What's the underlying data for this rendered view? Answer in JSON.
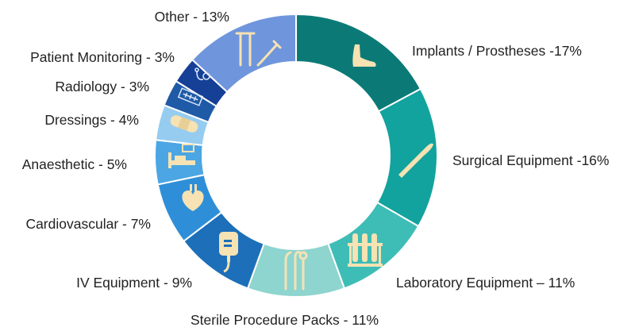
{
  "chart_data": {
    "type": "pie",
    "donut": true,
    "slices": [
      {
        "label": "Implants / Prostheses -17%",
        "value": 17,
        "color": "#0b7a77",
        "icon": "foot-icon"
      },
      {
        "label": "Surgical Equipment -16%",
        "value": 16,
        "color": "#12a39e",
        "icon": "scalpel-icon"
      },
      {
        "label": "Laboratory Equipment – 11%",
        "value": 11,
        "color": "#3dbdb6",
        "icon": "test-tubes-icon"
      },
      {
        "label": "Sterile Procedure Packs - 11%",
        "value": 11,
        "color": "#8ed4cf",
        "icon": "dental-tools-icon"
      },
      {
        "label": "IV Equipment - 9%",
        "value": 9,
        "color": "#1c6fb8",
        "icon": "iv-bag-icon"
      },
      {
        "label": "Cardiovascular - 7%",
        "value": 7,
        "color": "#2e8fd8",
        "icon": "heart-icon"
      },
      {
        "label": "Anaesthetic - 5%",
        "value": 5,
        "color": "#4ba6e3",
        "icon": "hospital-bed-icon"
      },
      {
        "label": "Dressings - 4%",
        "value": 4,
        "color": "#96ccef",
        "icon": "bandage-icon"
      },
      {
        "label": "Radiology - 3%",
        "value": 3,
        "color": "#1f5aa6",
        "icon": "xray-icon"
      },
      {
        "label": "Patient Monitoring - 3%",
        "value": 3,
        "color": "#163f96",
        "icon": "stethoscope-icon"
      },
      {
        "label": "Other - 13%",
        "value": 13,
        "color": "#6f96dc",
        "icon": "crutches-syringe-icon"
      }
    ]
  }
}
